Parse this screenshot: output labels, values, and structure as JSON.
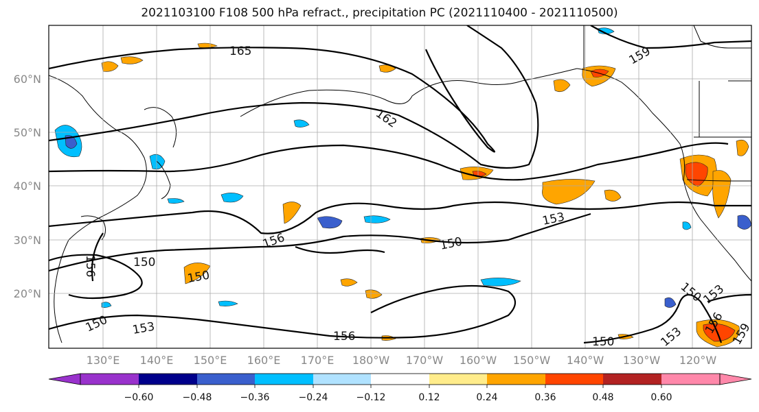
{
  "title": "2021103100 F108 500 hPa refract., precipitation PC (2021110400 - 2021110500)",
  "map": {
    "lon_ticks": [
      "130°E",
      "140°E",
      "150°E",
      "160°E",
      "170°E",
      "180°W",
      "170°W",
      "160°W",
      "150°W",
      "140°W",
      "130°W",
      "120°W"
    ],
    "lat_ticks": [
      "60°N",
      "50°N",
      "40°N",
      "30°N",
      "20°N"
    ],
    "contour_labels": [
      "165",
      "162",
      "159",
      "156",
      "156",
      "156",
      "153",
      "153",
      "153",
      "150",
      "150",
      "150",
      "150",
      "150",
      "150",
      "153",
      "159",
      "156"
    ]
  },
  "colorbar": {
    "colors": [
      "#9932cc",
      "#00008b",
      "#3a5fcd",
      "#00bfff",
      "#b0e2ff",
      "#ffffff",
      "#ffec8b",
      "#ffa500",
      "#ff4500",
      "#b22222",
      "#ff88aa"
    ],
    "ticks": [
      "−0.60",
      "−0.48",
      "−0.36",
      "−0.24",
      "−0.12",
      "0.12",
      "0.24",
      "0.36",
      "0.48",
      "0.60"
    ]
  }
}
